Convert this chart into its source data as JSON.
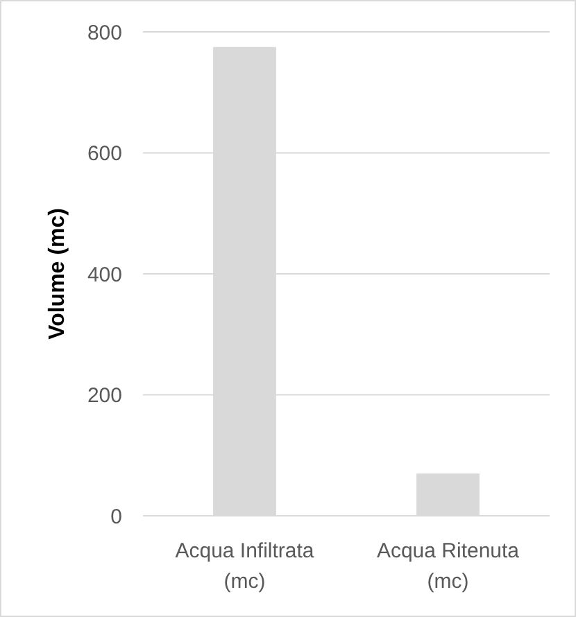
{
  "chart_data": {
    "type": "bar",
    "ylabel": "Volume (mc)",
    "categories": [
      "Acqua Infiltrata (mc)",
      "Acqua Ritenuta (mc)"
    ],
    "values": [
      775,
      70
    ],
    "color": "#d9d9d9",
    "ylim": [
      0,
      800
    ],
    "yticks": [
      0,
      200,
      400,
      600,
      800
    ],
    "grid": "y"
  }
}
